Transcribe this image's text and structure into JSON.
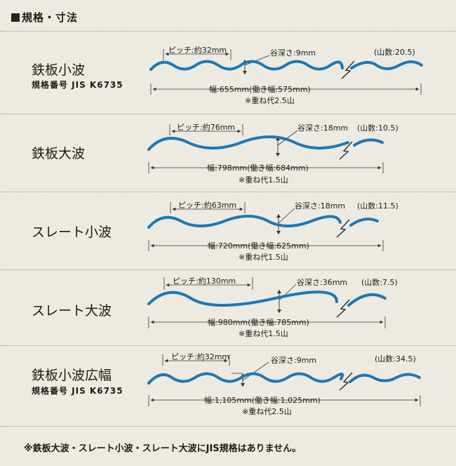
{
  "title": "規格・寸法",
  "colors": {
    "background": "#edebe1",
    "wave": "#1d78b6",
    "rule": "#9c9a90"
  },
  "sections": [
    {
      "name": "鉄板小波",
      "standard": "規格番号 JIS K6735",
      "pitch": "ピッチ:約32mm",
      "depth": "谷深さ:9mm",
      "peaks": "(山数:20.5)",
      "width": "幅:655mm(働き幅:575mm)",
      "overlap": "※重ね代2.5山"
    },
    {
      "name": "鉄板大波",
      "standard": "",
      "pitch": "ピッチ:約76mm",
      "depth": "谷深さ:18mm",
      "peaks": "(山数:10.5)",
      "width": "幅:798mm(働き幅:684mm)",
      "overlap": "※重ね代1.5山"
    },
    {
      "name": "スレート小波",
      "standard": "",
      "pitch": "ピッチ:約63mm",
      "depth": "谷深さ:18mm",
      "peaks": "(山数:11.5)",
      "width": "幅:720mm(働き幅:625mm)",
      "overlap": "※重ね代1.5山"
    },
    {
      "name": "スレート大波",
      "standard": "",
      "pitch": "ピッチ:約130mm",
      "depth": "谷深さ:36mm",
      "peaks": "(山数:7.5)",
      "width": "幅:980mm(働き幅:785mm)",
      "overlap": "※重ね代1.5山"
    },
    {
      "name": "鉄板小波広幅",
      "standard": "規格番号 JIS K6735",
      "pitch": "ピッチ:約32mm",
      "depth": "谷深さ:9mm",
      "peaks": "(山数:34.5)",
      "width": "幅:1,105mm(働き幅:1,025mm)",
      "overlap": "※重ね代2.5山"
    }
  ],
  "footnote": "※鉄板大波・スレート小波・スレート大波にJIS規格はありません。"
}
